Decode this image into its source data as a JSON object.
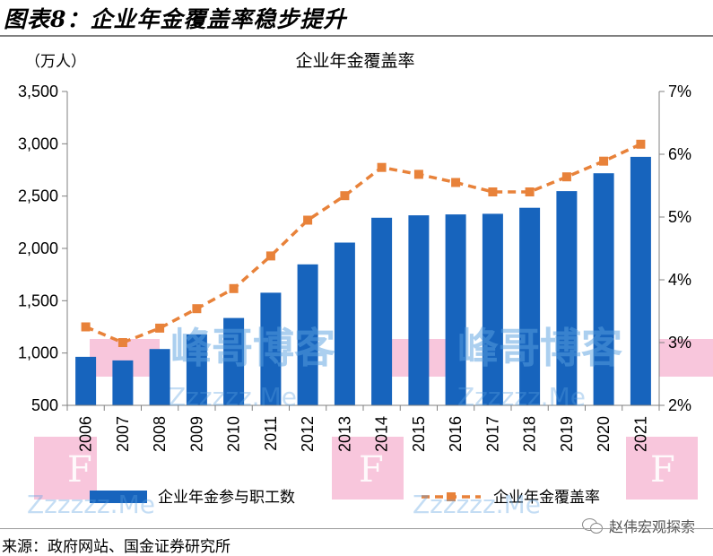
{
  "figure": {
    "title": "图表8：企业年金覆盖率稳步提升",
    "source": "来源：政府网站、国金证券研究所",
    "credit": "赵伟宏观探索",
    "credit_icon": "wechat-icon"
  },
  "watermark": {
    "brand": "峰哥博客",
    "site": "Zzzzzz.Me",
    "letter": "F",
    "pink": "#f4a0c4",
    "blue": "#5aa0e0"
  },
  "chart_data": {
    "type": "bar",
    "title": "企业年金覆盖率",
    "unit_label": "（万人）",
    "categories": [
      "2006",
      "2007",
      "2008",
      "2009",
      "2010",
      "2011",
      "2012",
      "2013",
      "2014",
      "2015",
      "2016",
      "2017",
      "2018",
      "2019",
      "2020",
      "2021"
    ],
    "series": [
      {
        "name": "企业年金参与职工数",
        "type": "bar",
        "axis": "left",
        "color": "#1764bd",
        "values": [
          964,
          929,
          1038,
          1179,
          1335,
          1577,
          1847,
          2056,
          2293,
          2316,
          2325,
          2331,
          2388,
          2548,
          2718,
          2875
        ]
      },
      {
        "name": "企业年金覆盖率",
        "type": "line",
        "axis": "right",
        "style": "dashed",
        "marker": "square",
        "color": "#e8823a",
        "values": [
          3.25,
          3.0,
          3.23,
          3.54,
          3.86,
          4.38,
          4.95,
          5.34,
          5.79,
          5.68,
          5.55,
          5.4,
          5.4,
          5.64,
          5.89,
          6.16
        ]
      }
    ],
    "y_left": {
      "min": 500,
      "max": 3500,
      "ticks": [
        500,
        1000,
        1500,
        2000,
        2500,
        3000,
        3500
      ],
      "tick_labels": [
        "500",
        "1,000",
        "1,500",
        "2,000",
        "2,500",
        "3,000",
        "3,500"
      ]
    },
    "y_right": {
      "min": 2,
      "max": 7,
      "ticks": [
        2,
        3,
        4,
        5,
        6,
        7
      ],
      "tick_labels": [
        "2%",
        "3%",
        "4%",
        "5%",
        "6%",
        "7%"
      ]
    },
    "grid": false,
    "legend_position": "bottom"
  }
}
